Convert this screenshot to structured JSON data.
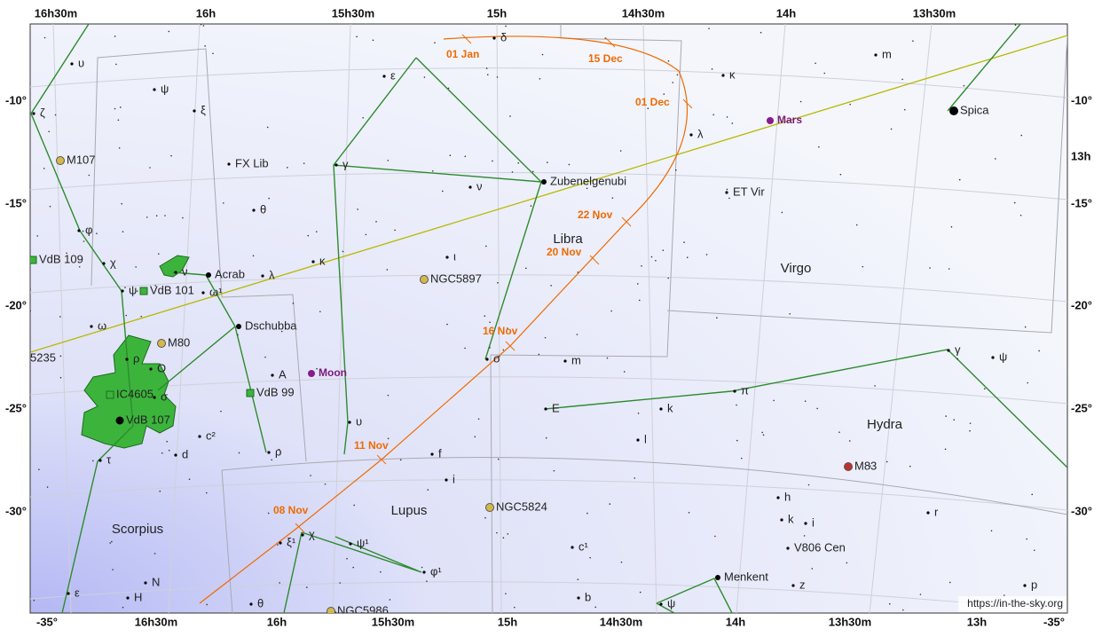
{
  "top_ra_labels": [
    "16h30m",
    "16h",
    "15h30m",
    "15h",
    "14h30m",
    "14h",
    "13h30m"
  ],
  "bottom_labels": [
    "-35°",
    "16h30m",
    "16h",
    "15h30m",
    "15h",
    "14h30m",
    "14h",
    "13h30m",
    "13h",
    "-35°"
  ],
  "left_dec_labels": [
    "-10°",
    "-15°",
    "-20°",
    "-25°",
    "-30°"
  ],
  "right_labels": [
    "-10°",
    "13h",
    "-15°",
    "-20°",
    "-25°",
    "-30°"
  ],
  "constellations": [
    "Libra",
    "Virgo",
    "Hydra",
    "Lupus",
    "Scorpius"
  ],
  "comet_dates": [
    "01 Jan",
    "15 Dec",
    "01 Dec",
    "22 Nov",
    "20 Nov",
    "16 Nov",
    "11 Nov",
    "08 Nov"
  ],
  "planets": [
    "Mars",
    "Moon"
  ],
  "deep_sky": [
    "M107",
    "VdB 109",
    "VdB 101",
    "M80",
    "IC4605",
    "VdB 107",
    "NGC5897",
    "NGC5824",
    "NGC5986",
    "M83",
    "VdB 99",
    "5235"
  ],
  "stars": [
    "υ",
    "ψ",
    "ξ",
    "ζ",
    "FX Lib",
    "θ",
    "φ",
    "χ",
    "ψ",
    "ω¹",
    "ν",
    "Acrab",
    "λ",
    "κ",
    "Dschubba",
    "ω",
    "ρ",
    "O",
    "σ",
    "A",
    "υ",
    "c²",
    "d",
    "ρ",
    "τ",
    "ε",
    "γ",
    "ν",
    "ι",
    "Zubenelgenubi",
    "δ",
    "κ",
    "m",
    "λ",
    "ET Vir",
    "Spica",
    "σ",
    "m",
    "E",
    "k",
    "π",
    "γ",
    "ψ",
    "l",
    "f",
    "i",
    "h",
    "k",
    "i",
    "r",
    "V806 Cen",
    "c¹",
    "ψ¹",
    "ξ¹",
    "χ",
    "φ¹",
    "Menkent",
    "z",
    "p",
    "b",
    "θ",
    "ψ",
    "N",
    "ε",
    "H"
  ],
  "credit": "https://in-the-sky.org"
}
